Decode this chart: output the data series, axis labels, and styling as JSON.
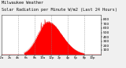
{
  "title": "Milwaukee Weather  Solar Radiation per Minute W/m2 (Last 24 Hours)",
  "title_fontsize": 3.8,
  "bg_color": "#f0f0f0",
  "plot_bg_color": "#ffffff",
  "fill_color": "#ff0000",
  "line_color": "#cc0000",
  "grid_color": "#888888",
  "ylim": [
    0,
    900
  ],
  "yticks": [
    100,
    200,
    300,
    400,
    500,
    600,
    700,
    800
  ],
  "ylabel_fontsize": 3.2,
  "xlabel_fontsize": 2.8,
  "num_points": 1440,
  "peak_hour": 11.2,
  "peak_value": 750,
  "sigma": 2.8,
  "sunrise": 5.5,
  "sunset": 20.0,
  "xtick_hours": [
    0,
    2,
    4,
    6,
    8,
    10,
    12,
    14,
    16,
    18,
    20,
    22,
    24
  ]
}
